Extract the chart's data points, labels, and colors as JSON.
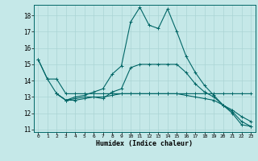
{
  "xlabel": "Humidex (Indice chaleur)",
  "bg_color": "#c5e8e8",
  "line_color": "#006666",
  "grid_color": "#aad4d4",
  "xlim": [
    -0.5,
    23.5
  ],
  "ylim": [
    10.85,
    18.65
  ],
  "yticks": [
    11,
    12,
    13,
    14,
    15,
    16,
    17,
    18
  ],
  "xticks": [
    0,
    1,
    2,
    3,
    4,
    5,
    6,
    7,
    8,
    9,
    10,
    11,
    12,
    13,
    14,
    15,
    16,
    17,
    18,
    19,
    20,
    21,
    22,
    23
  ],
  "lines": [
    {
      "x": [
        0,
        1,
        2,
        3,
        4,
        5,
        6,
        7,
        8,
        9,
        10,
        11,
        12,
        13,
        14,
        15,
        16,
        17,
        18,
        19,
        20,
        21,
        22,
        23
      ],
      "y": [
        15.3,
        14.1,
        14.1,
        13.2,
        13.2,
        13.2,
        13.2,
        13.2,
        13.2,
        13.2,
        13.2,
        13.2,
        13.2,
        13.2,
        13.2,
        13.2,
        13.2,
        13.2,
        13.2,
        13.2,
        13.2,
        13.2,
        13.2,
        13.2
      ]
    },
    {
      "x": [
        0,
        1,
        2,
        3,
        4,
        5,
        6,
        7,
        8,
        9,
        10,
        11,
        12,
        13,
        14,
        15,
        16,
        17,
        18,
        19,
        20,
        21,
        22,
        23
      ],
      "y": [
        15.3,
        14.1,
        13.2,
        12.8,
        13.0,
        13.1,
        13.3,
        13.5,
        14.4,
        14.9,
        17.6,
        18.5,
        17.4,
        17.2,
        18.4,
        17.0,
        15.5,
        14.5,
        13.7,
        13.1,
        12.5,
        12.0,
        11.3,
        11.2
      ]
    },
    {
      "x": [
        2,
        3,
        4,
        5,
        6,
        7,
        8,
        9,
        10,
        11,
        12,
        13,
        14,
        15,
        16,
        17,
        18,
        19,
        20,
        21,
        22,
        23
      ],
      "y": [
        13.2,
        12.8,
        12.9,
        13.0,
        13.0,
        12.9,
        13.3,
        13.5,
        14.8,
        15.0,
        15.0,
        15.0,
        15.0,
        15.0,
        14.5,
        13.8,
        13.3,
        13.0,
        12.5,
        12.2,
        11.8,
        11.5
      ]
    },
    {
      "x": [
        2,
        3,
        4,
        5,
        6,
        7,
        8,
        9,
        10,
        11,
        12,
        13,
        14,
        15,
        16,
        17,
        18,
        19,
        20,
        21,
        22,
        23
      ],
      "y": [
        13.2,
        12.8,
        12.8,
        12.9,
        13.0,
        13.0,
        13.1,
        13.2,
        13.2,
        13.2,
        13.2,
        13.2,
        13.2,
        13.2,
        13.1,
        13.0,
        12.9,
        12.8,
        12.5,
        12.1,
        11.5,
        11.2
      ]
    }
  ]
}
